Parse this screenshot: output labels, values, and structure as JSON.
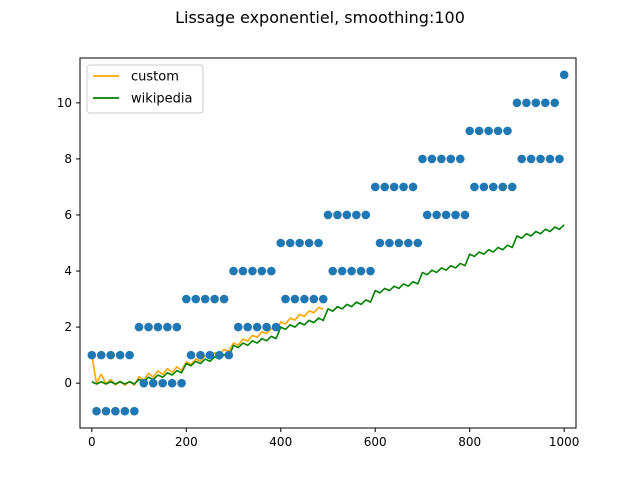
{
  "chart_data": {
    "type": "scatter",
    "title": "Lissage exponentiel, smoothing:100",
    "xlabel": "",
    "ylabel": "",
    "xlim": [
      -25,
      1025
    ],
    "ylim": [
      -1.6,
      11.6
    ],
    "xticks": [
      0,
      200,
      400,
      600,
      800,
      1000
    ],
    "yticks": [
      0,
      2,
      4,
      6,
      8,
      10
    ],
    "grid": false,
    "legend_position": "top-left",
    "scatter": {
      "color": "#1f77b4",
      "x": [
        0,
        10,
        20,
        30,
        40,
        50,
        60,
        70,
        80,
        90,
        100,
        110,
        120,
        130,
        140,
        150,
        160,
        170,
        180,
        190,
        200,
        210,
        220,
        230,
        240,
        250,
        260,
        270,
        280,
        290,
        300,
        310,
        320,
        330,
        340,
        350,
        360,
        370,
        380,
        390,
        400,
        410,
        420,
        430,
        440,
        450,
        460,
        470,
        480,
        490,
        500,
        510,
        520,
        530,
        540,
        550,
        560,
        570,
        580,
        590,
        600,
        610,
        620,
        630,
        640,
        650,
        660,
        670,
        680,
        690,
        700,
        710,
        720,
        730,
        740,
        750,
        760,
        770,
        780,
        790,
        800,
        810,
        820,
        830,
        840,
        850,
        860,
        870,
        880,
        890,
        900,
        910,
        920,
        930,
        940,
        950,
        960,
        970,
        980,
        990,
        1000
      ],
      "y": [
        1,
        -1,
        1,
        -1,
        1,
        -1,
        1,
        -1,
        1,
        -1,
        2,
        0,
        2,
        0,
        2,
        0,
        2,
        0,
        2,
        0,
        3,
        1,
        3,
        1,
        3,
        1,
        3,
        1,
        3,
        1,
        4,
        2,
        4,
        2,
        4,
        2,
        4,
        2,
        4,
        2,
        5,
        3,
        5,
        3,
        5,
        3,
        5,
        3,
        5,
        3,
        6,
        4,
        6,
        4,
        6,
        4,
        6,
        4,
        6,
        4,
        7,
        5,
        7,
        5,
        7,
        5,
        7,
        5,
        7,
        5,
        8,
        6,
        8,
        6,
        8,
        6,
        8,
        6,
        8,
        6,
        9,
        7,
        9,
        7,
        9,
        7,
        9,
        7,
        9,
        7,
        10,
        8,
        10,
        8,
        10,
        8,
        10,
        8,
        10,
        8,
        11
      ]
    },
    "series": [
      {
        "name": "custom",
        "color": "#ffa500",
        "x": [
          0,
          10,
          20,
          30,
          40,
          50,
          60,
          70,
          80,
          90,
          100,
          110,
          120,
          130,
          140,
          150,
          160,
          170,
          180,
          190,
          200,
          210,
          220,
          230,
          240,
          250,
          260,
          270,
          280,
          290,
          300,
          310,
          320,
          330,
          340,
          350,
          360,
          370,
          380,
          390,
          400,
          410,
          420,
          430,
          440,
          450,
          460,
          470,
          480,
          490
        ],
        "y": [
          1.0,
          -0.01,
          0.32,
          -0.03,
          0.13,
          -0.06,
          0.07,
          -0.07,
          0.06,
          -0.07,
          0.23,
          0.11,
          0.35,
          0.22,
          0.44,
          0.31,
          0.52,
          0.39,
          0.58,
          0.46,
          0.76,
          0.67,
          0.86,
          0.79,
          0.98,
          0.91,
          1.09,
          1.03,
          1.2,
          1.14,
          1.43,
          1.36,
          1.57,
          1.5,
          1.7,
          1.64,
          1.83,
          1.77,
          1.95,
          1.89,
          2.18,
          2.11,
          2.32,
          2.25,
          2.45,
          2.38,
          2.58,
          2.51,
          2.7,
          2.64
        ]
      },
      {
        "name": "wikipedia",
        "color": "#008000",
        "x": [
          0,
          10,
          20,
          30,
          40,
          50,
          60,
          70,
          80,
          90,
          100,
          110,
          120,
          130,
          140,
          150,
          160,
          170,
          180,
          190,
          200,
          210,
          220,
          230,
          240,
          250,
          260,
          270,
          280,
          290,
          300,
          310,
          320,
          330,
          340,
          350,
          360,
          370,
          380,
          390,
          400,
          410,
          420,
          430,
          440,
          450,
          460,
          470,
          480,
          490,
          500,
          510,
          520,
          530,
          540,
          550,
          560,
          570,
          580,
          590,
          600,
          610,
          620,
          630,
          640,
          650,
          660,
          670,
          680,
          690,
          700,
          710,
          720,
          730,
          740,
          750,
          760,
          770,
          780,
          790,
          800,
          810,
          820,
          830,
          840,
          850,
          860,
          870,
          880,
          890,
          900,
          910,
          920,
          930,
          940,
          950,
          960,
          970,
          980,
          990,
          1000
        ],
        "y": [
          0.05,
          -0.03,
          0.05,
          -0.03,
          0.05,
          -0.03,
          0.05,
          -0.03,
          0.05,
          -0.03,
          0.13,
          0.05,
          0.21,
          0.13,
          0.29,
          0.21,
          0.37,
          0.29,
          0.45,
          0.37,
          0.7,
          0.62,
          0.78,
          0.7,
          0.86,
          0.78,
          0.94,
          0.86,
          1.02,
          0.94,
          1.35,
          1.27,
          1.43,
          1.35,
          1.51,
          1.43,
          1.59,
          1.51,
          1.67,
          1.59,
          2.0,
          1.92,
          2.08,
          2.0,
          2.16,
          2.08,
          2.24,
          2.16,
          2.32,
          2.24,
          2.65,
          2.57,
          2.73,
          2.65,
          2.81,
          2.73,
          2.89,
          2.81,
          2.97,
          2.89,
          3.3,
          3.22,
          3.38,
          3.3,
          3.46,
          3.38,
          3.54,
          3.46,
          3.62,
          3.54,
          3.95,
          3.87,
          4.03,
          3.95,
          4.11,
          4.03,
          4.19,
          4.11,
          4.27,
          4.19,
          4.6,
          4.52,
          4.68,
          4.6,
          4.76,
          4.68,
          4.84,
          4.76,
          4.92,
          4.84,
          5.25,
          5.17,
          5.33,
          5.25,
          5.41,
          5.33,
          5.49,
          5.41,
          5.57,
          5.49,
          5.65
        ]
      }
    ]
  }
}
